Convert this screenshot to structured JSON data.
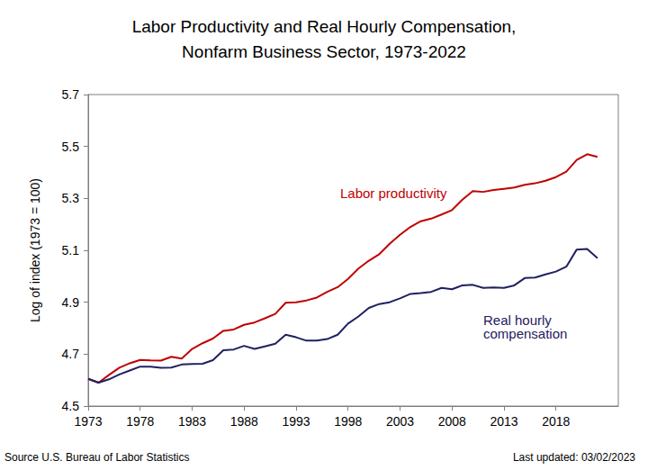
{
  "chart_data": {
    "type": "line",
    "title": "Labor Productivity and Real Hourly Compensation,\nNonfarm Business Sector, 1973-2022",
    "y_label": "Log of index (1973 = 100)",
    "source": "Source U.S. Bureau of Labor Statistics",
    "updated_note": "Last updated: 03/02/2023",
    "x": [
      1973,
      1974,
      1975,
      1976,
      1977,
      1978,
      1979,
      1980,
      1981,
      1982,
      1983,
      1984,
      1985,
      1986,
      1987,
      1988,
      1989,
      1990,
      1991,
      1992,
      1993,
      1994,
      1995,
      1996,
      1997,
      1998,
      1999,
      2000,
      2001,
      2002,
      2003,
      2004,
      2005,
      2006,
      2007,
      2008,
      2009,
      2010,
      2011,
      2012,
      2013,
      2014,
      2015,
      2016,
      2017,
      2018,
      2019,
      2020,
      2021,
      2022
    ],
    "series": [
      {
        "name": "Labor productivity",
        "color": "#c00000",
        "values": [
          4.605,
          4.59,
          4.62,
          4.648,
          4.665,
          4.678,
          4.676,
          4.675,
          4.69,
          4.683,
          4.72,
          4.742,
          4.76,
          4.79,
          4.795,
          4.813,
          4.822,
          4.838,
          4.855,
          4.898,
          4.9,
          4.907,
          4.918,
          4.94,
          4.958,
          4.99,
          5.03,
          5.06,
          5.085,
          5.125,
          5.16,
          5.19,
          5.212,
          5.222,
          5.238,
          5.255,
          5.295,
          5.328,
          5.325,
          5.332,
          5.337,
          5.342,
          5.352,
          5.358,
          5.368,
          5.382,
          5.403,
          5.448,
          5.47,
          5.46
        ]
      },
      {
        "name": "Real hourly compensation",
        "color": "#1f2060",
        "values": [
          4.605,
          4.59,
          4.603,
          4.622,
          4.637,
          4.652,
          4.652,
          4.647,
          4.648,
          4.66,
          4.662,
          4.663,
          4.677,
          4.715,
          4.718,
          4.732,
          4.72,
          4.73,
          4.74,
          4.775,
          4.765,
          4.752,
          4.752,
          4.758,
          4.775,
          4.818,
          4.845,
          4.878,
          4.893,
          4.9,
          4.915,
          4.932,
          4.935,
          4.94,
          4.955,
          4.95,
          4.965,
          4.967,
          4.955,
          4.957,
          4.955,
          4.965,
          4.993,
          4.995,
          5.007,
          5.018,
          5.037,
          5.103,
          5.105,
          5.07
        ]
      }
    ],
    "xlim": [
      1973,
      2024
    ],
    "xticks": [
      1973,
      1978,
      1983,
      1988,
      1993,
      1998,
      2003,
      2008,
      2013,
      2018
    ],
    "ylim": [
      4.5,
      5.7
    ],
    "yticks": [
      4.5,
      4.7,
      4.9,
      5.1,
      5.3,
      5.5,
      5.7
    ],
    "grid": false
  }
}
